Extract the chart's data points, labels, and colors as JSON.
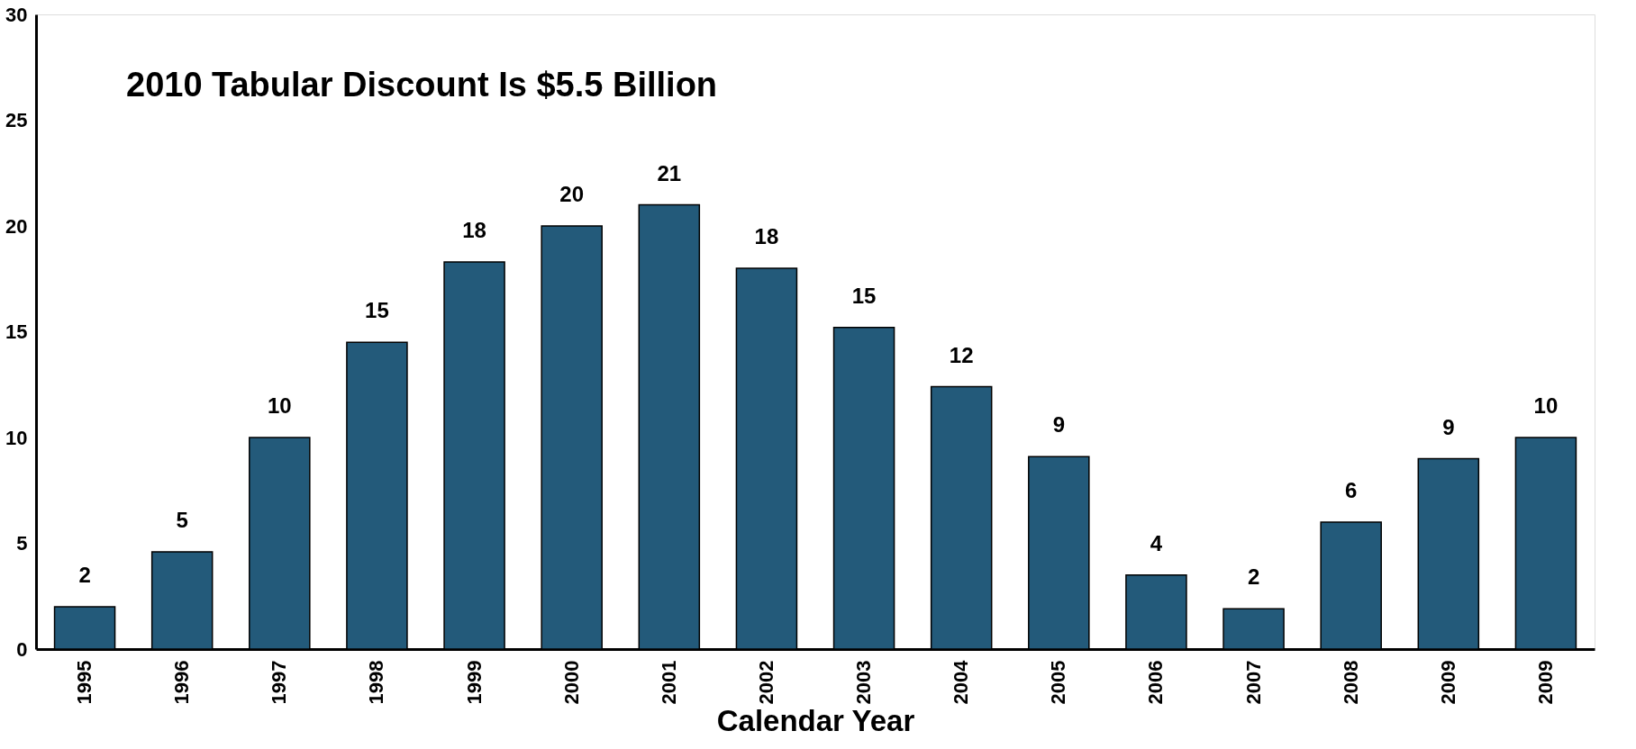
{
  "chart_data": {
    "type": "bar",
    "title": "2010 Tabular Discount Is $5.5 Billion",
    "xlabel": "Calendar Year",
    "categories": [
      "1995",
      "1996",
      "1997",
      "1998",
      "1999",
      "2000",
      "2001",
      "2002",
      "2003",
      "2004",
      "2005",
      "2006",
      "2007",
      "2008",
      "2009",
      "2009"
    ],
    "values": [
      2,
      4.6,
      10,
      14.5,
      18.3,
      20,
      21,
      18,
      15.2,
      12.4,
      9.1,
      3.5,
      1.9,
      6,
      9,
      10
    ],
    "value_labels": [
      "2",
      "5",
      "10",
      "15",
      "18",
      "20",
      "21",
      "18",
      "15",
      "12",
      "9",
      "4",
      "2",
      "6",
      "9",
      "10"
    ],
    "color": "#235a7a",
    "ylim": [
      0,
      30
    ],
    "yticks": [
      0,
      5,
      10,
      15,
      20,
      25,
      30
    ],
    "grid": false
  }
}
